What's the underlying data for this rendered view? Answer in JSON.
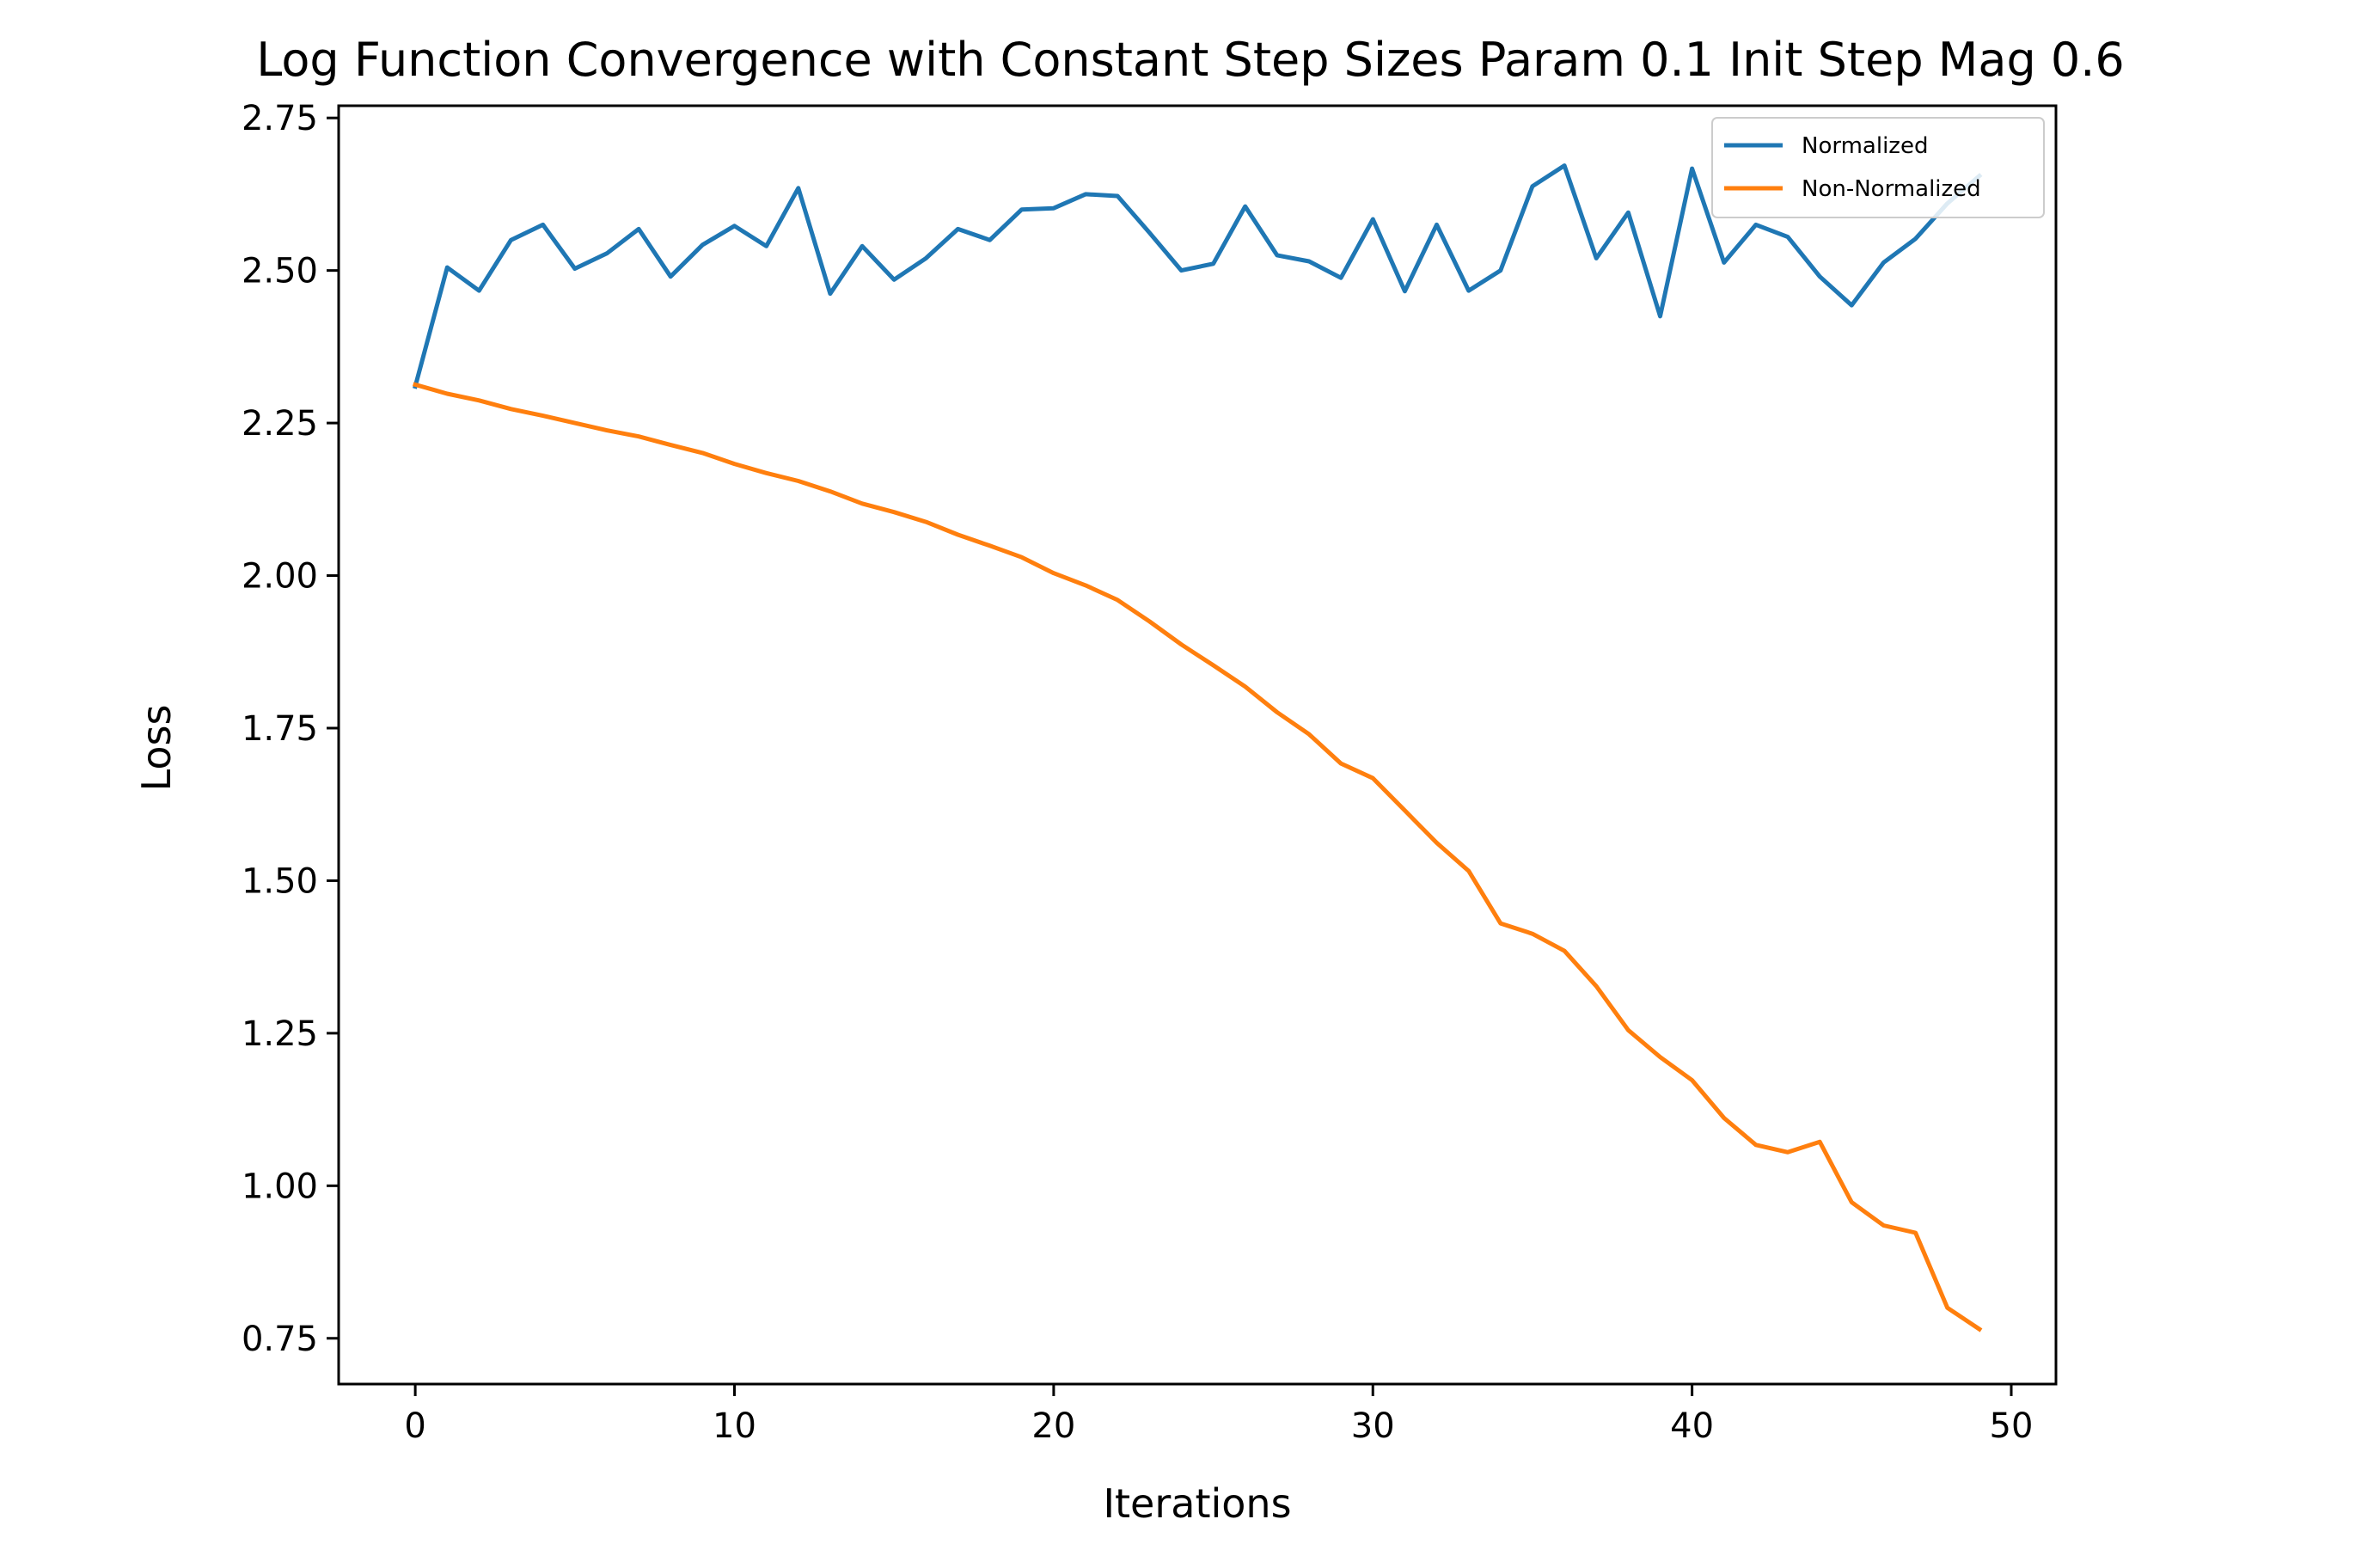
{
  "chart_data": {
    "type": "line",
    "title": "Log Function Convergence with Constant Step Sizes Param 0.1 Init Step Mag 0.6",
    "xlabel": "Iterations",
    "ylabel": "Loss",
    "xlim": [
      -2.4,
      51.4
    ],
    "ylim": [
      0.675,
      2.77
    ],
    "xticks": [
      0,
      10,
      20,
      30,
      40,
      50
    ],
    "xtick_labels": [
      "0",
      "10",
      "20",
      "30",
      "40",
      "50"
    ],
    "yticks": [
      0.75,
      1.0,
      1.25,
      1.5,
      1.75,
      2.0,
      2.25,
      2.5,
      2.75
    ],
    "ytick_labels": [
      "0.75",
      "1.00",
      "1.25",
      "1.50",
      "1.75",
      "2.00",
      "2.25",
      "2.50",
      "2.75"
    ],
    "grid": false,
    "legend_position": "top-right",
    "x": [
      0,
      1,
      2,
      3,
      4,
      5,
      6,
      7,
      8,
      9,
      10,
      11,
      12,
      13,
      14,
      15,
      16,
      17,
      18,
      19,
      20,
      21,
      22,
      23,
      24,
      25,
      26,
      27,
      28,
      29,
      30,
      31,
      32,
      33,
      34,
      35,
      36,
      37,
      38,
      39,
      40,
      41,
      42,
      43,
      44,
      45,
      46,
      47,
      48,
      49
    ],
    "series": [
      {
        "name": "Normalized",
        "color": "#1f77b4",
        "values": [
          2.31,
          2.505,
          2.467,
          2.55,
          2.575,
          2.503,
          2.528,
          2.568,
          2.49,
          2.542,
          2.573,
          2.54,
          2.635,
          2.462,
          2.54,
          2.485,
          2.52,
          2.568,
          2.55,
          2.6,
          2.602,
          2.625,
          2.622,
          2.562,
          2.5,
          2.511,
          2.605,
          2.525,
          2.515,
          2.488,
          2.584,
          2.466,
          2.575,
          2.467,
          2.5,
          2.638,
          2.672,
          2.52,
          2.595,
          2.425,
          2.667,
          2.513,
          2.575,
          2.555,
          2.49,
          2.443,
          2.513,
          2.552,
          2.61,
          2.655
        ]
      },
      {
        "name": "Non-Normalized",
        "color": "#ff7f0e",
        "values": [
          2.313,
          2.298,
          2.287,
          2.273,
          2.262,
          2.25,
          2.238,
          2.228,
          2.214,
          2.201,
          2.183,
          2.168,
          2.155,
          2.138,
          2.118,
          2.104,
          2.088,
          2.067,
          2.049,
          2.03,
          2.004,
          1.984,
          1.96,
          1.925,
          1.887,
          1.853,
          1.818,
          1.776,
          1.74,
          1.692,
          1.668,
          1.615,
          1.562,
          1.516,
          1.43,
          1.413,
          1.385,
          1.327,
          1.255,
          1.211,
          1.173,
          1.111,
          1.067,
          1.055,
          1.072,
          0.973,
          0.935,
          0.923,
          0.8,
          0.765
        ]
      }
    ]
  }
}
